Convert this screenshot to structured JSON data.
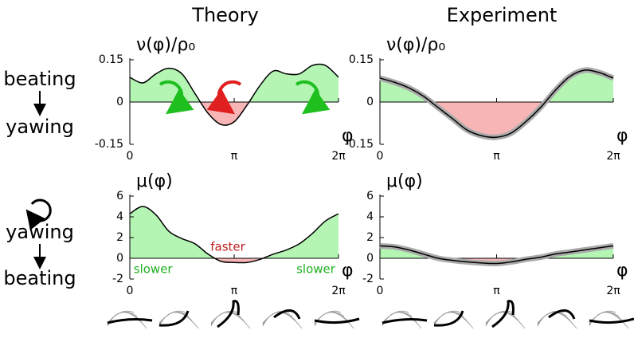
{
  "column_titles": [
    "Theory",
    "Experiment"
  ],
  "row_labels": [
    [
      "beating",
      "yawing"
    ],
    [
      "yawing",
      "beating"
    ]
  ],
  "chart_data": [
    {
      "type": "line",
      "y_label": "ν(φ)/ρ₀",
      "x_label": "φ",
      "x": [
        0,
        0.393,
        0.785,
        1.178,
        1.571,
        1.963,
        2.356,
        2.749,
        3.142,
        3.534,
        3.927,
        4.32,
        4.712,
        5.105,
        5.498,
        5.89,
        6.283
      ],
      "values": [
        0.088,
        0.068,
        0.1,
        0.12,
        0.1,
        0.03,
        -0.04,
        -0.08,
        -0.07,
        -0.01,
        0.06,
        0.11,
        0.1,
        0.1,
        0.13,
        0.13,
        0.088
      ],
      "xlim": [
        0,
        6.283
      ],
      "xticks": [
        0,
        {
          "value": 3.142,
          "label": "π"
        },
        {
          "value": 6.283,
          "label": "2π"
        }
      ],
      "ylim": [
        -0.15,
        0.15
      ],
      "yticks": [
        0.15,
        0,
        -0.15
      ],
      "positive_color": "#b4f5b4",
      "negative_color": "#f7b5b5",
      "band": false
    },
    {
      "type": "line",
      "y_label": "ν(φ)/ρ₀",
      "x_label": "φ",
      "x": [
        0,
        0.393,
        0.785,
        1.178,
        1.571,
        1.963,
        2.356,
        2.749,
        3.142,
        3.534,
        3.927,
        4.32,
        4.712,
        5.105,
        5.498,
        5.89,
        6.283
      ],
      "values": [
        0.085,
        0.07,
        0.05,
        0.02,
        -0.02,
        -0.06,
        -0.1,
        -0.12,
        -0.125,
        -0.11,
        -0.07,
        -0.02,
        0.04,
        0.09,
        0.113,
        0.105,
        0.085
      ],
      "xlim": [
        0,
        6.283
      ],
      "xticks": [
        0,
        {
          "value": 3.142,
          "label": "π"
        },
        {
          "value": 6.283,
          "label": "2π"
        }
      ],
      "ylim": [
        -0.15,
        0.15
      ],
      "yticks": [
        0.15,
        0,
        -0.15
      ],
      "positive_color": "#b4f5b4",
      "negative_color": "#f7b5b5",
      "band": true
    },
    {
      "type": "line",
      "y_label": "μ(φ)",
      "x_label": "φ",
      "x": [
        0,
        0.393,
        0.785,
        1.178,
        1.571,
        1.963,
        2.356,
        2.749,
        3.142,
        3.534,
        3.927,
        4.32,
        4.712,
        5.105,
        5.498,
        5.89,
        6.283
      ],
      "values": [
        4.3,
        5.0,
        4.2,
        2.6,
        1.9,
        1.4,
        0.4,
        -0.3,
        -0.4,
        -0.4,
        -0.1,
        0.4,
        0.8,
        1.4,
        2.4,
        3.6,
        4.3
      ],
      "xlim": [
        0,
        6.283
      ],
      "xticks": [
        0,
        {
          "value": 3.142,
          "label": "π"
        },
        {
          "value": 6.283,
          "label": "2π"
        }
      ],
      "ylim": [
        -2,
        6
      ],
      "yticks": [
        6,
        4,
        2,
        0,
        -2
      ],
      "positive_color": "#b4f5b4",
      "negative_color": "#f7b5b5",
      "band": false,
      "annotations": [
        "faster",
        "slower",
        "slower"
      ]
    },
    {
      "type": "line",
      "y_label": "μ(φ)",
      "x_label": "φ",
      "x": [
        0,
        0.393,
        0.785,
        1.178,
        1.571,
        1.963,
        2.356,
        2.749,
        3.142,
        3.534,
        3.927,
        4.32,
        4.712,
        5.105,
        5.498,
        5.89,
        6.283
      ],
      "values": [
        1.2,
        1.1,
        0.8,
        0.4,
        0,
        -0.2,
        -0.35,
        -0.45,
        -0.5,
        -0.35,
        -0.1,
        0.1,
        0.4,
        0.6,
        0.8,
        1.0,
        1.2
      ],
      "xlim": [
        0,
        6.283
      ],
      "xticks": [
        0,
        {
          "value": 3.142,
          "label": "π"
        },
        {
          "value": 6.283,
          "label": "2π"
        }
      ],
      "ylim": [
        -2,
        6
      ],
      "yticks": [
        6,
        4,
        2,
        0,
        -2
      ],
      "positive_color": "#b4f5b4",
      "negative_color": "#f7b5b5",
      "band": true
    }
  ]
}
